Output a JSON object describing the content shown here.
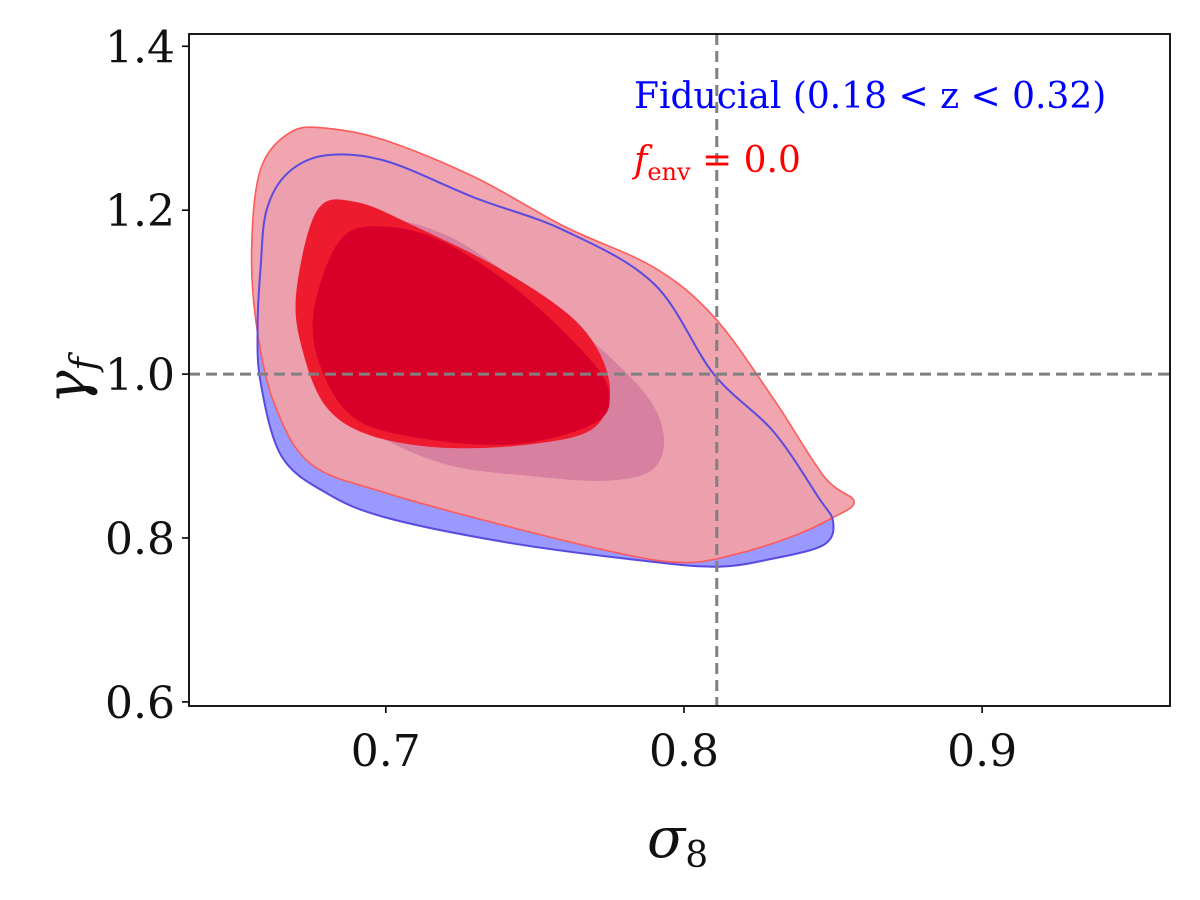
{
  "chart_data": {
    "type": "contour",
    "xlabel": "σ8",
    "ylabel": "γf",
    "xlim": [
      0.634,
      0.963
    ],
    "ylim": [
      0.595,
      1.415
    ],
    "x_ticks": [
      {
        "value": 0.7,
        "label": "0.7"
      },
      {
        "value": 0.8,
        "label": "0.8"
      },
      {
        "value": 0.9,
        "label": "0.9"
      }
    ],
    "y_ticks": [
      {
        "value": 0.6,
        "label": "0.6"
      },
      {
        "value": 0.8,
        "label": "0.8"
      },
      {
        "value": 1.0,
        "label": "1.0"
      },
      {
        "value": 1.2,
        "label": "1.2"
      },
      {
        "value": 1.4,
        "label": "1.4"
      }
    ],
    "fiducial": {
      "x": 0.811,
      "y": 1.0
    },
    "grid": false,
    "legend_position": "top-right",
    "series": [
      {
        "name": "Fiducial (0.18 < z < 0.32)",
        "color": "#0000ff",
        "outer_fill": "#9999ff",
        "inner_fill": "#d880a0",
        "contour_outer_95": [
          [
            0.658,
            1.13
          ],
          [
            0.66,
            1.2
          ],
          [
            0.667,
            1.245
          ],
          [
            0.68,
            1.267
          ],
          [
            0.7,
            1.26
          ],
          [
            0.73,
            1.215
          ],
          [
            0.76,
            1.175
          ],
          [
            0.79,
            1.11
          ],
          [
            0.81,
            1.0
          ],
          [
            0.83,
            0.93
          ],
          [
            0.845,
            0.85
          ],
          [
            0.85,
            0.82
          ],
          [
            0.847,
            0.792
          ],
          [
            0.83,
            0.775
          ],
          [
            0.81,
            0.765
          ],
          [
            0.78,
            0.775
          ],
          [
            0.74,
            0.795
          ],
          [
            0.7,
            0.825
          ],
          [
            0.68,
            0.855
          ],
          [
            0.665,
            0.9
          ],
          [
            0.658,
            0.99
          ],
          [
            0.657,
            1.06
          ]
        ],
        "contour_inner_68": [
          [
            0.675,
            1.1
          ],
          [
            0.685,
            1.18
          ],
          [
            0.7,
            1.19
          ],
          [
            0.72,
            1.17
          ],
          [
            0.74,
            1.125
          ],
          [
            0.76,
            1.07
          ],
          [
            0.785,
            0.985
          ],
          [
            0.793,
            0.93
          ],
          [
            0.79,
            0.885
          ],
          [
            0.775,
            0.87
          ],
          [
            0.75,
            0.875
          ],
          [
            0.72,
            0.89
          ],
          [
            0.695,
            0.93
          ],
          [
            0.68,
            0.98
          ],
          [
            0.675,
            1.03
          ]
        ]
      },
      {
        "name": "fenv = 0.0",
        "color": "#ff0000",
        "outer_fill": "#f0a0aa",
        "inner_fill": "#d80028",
        "contour_outer_95": [
          [
            0.655,
            1.15
          ],
          [
            0.658,
            1.25
          ],
          [
            0.668,
            1.295
          ],
          [
            0.68,
            1.3
          ],
          [
            0.7,
            1.285
          ],
          [
            0.73,
            1.24
          ],
          [
            0.76,
            1.18
          ],
          [
            0.79,
            1.13
          ],
          [
            0.81,
            1.07
          ],
          [
            0.83,
            0.97
          ],
          [
            0.847,
            0.875
          ],
          [
            0.857,
            0.845
          ],
          [
            0.85,
            0.825
          ],
          [
            0.835,
            0.8
          ],
          [
            0.815,
            0.778
          ],
          [
            0.8,
            0.77
          ],
          [
            0.78,
            0.78
          ],
          [
            0.74,
            0.815
          ],
          [
            0.7,
            0.855
          ],
          [
            0.675,
            0.89
          ],
          [
            0.663,
            0.96
          ],
          [
            0.657,
            1.05
          ]
        ],
        "contour_inner_68": [
          [
            0.67,
            1.1
          ],
          [
            0.677,
            1.2
          ],
          [
            0.69,
            1.21
          ],
          [
            0.71,
            1.18
          ],
          [
            0.74,
            1.125
          ],
          [
            0.765,
            1.06
          ],
          [
            0.775,
            0.99
          ],
          [
            0.77,
            0.935
          ],
          [
            0.75,
            0.915
          ],
          [
            0.72,
            0.91
          ],
          [
            0.695,
            0.925
          ],
          [
            0.68,
            0.96
          ],
          [
            0.672,
            1.03
          ]
        ],
        "contour_core": [
          [
            0.676,
            1.08
          ],
          [
            0.685,
            1.165
          ],
          [
            0.7,
            1.18
          ],
          [
            0.72,
            1.16
          ],
          [
            0.745,
            1.1
          ],
          [
            0.768,
            1.02
          ],
          [
            0.775,
            0.975
          ],
          [
            0.77,
            0.94
          ],
          [
            0.745,
            0.915
          ],
          [
            0.715,
            0.92
          ],
          [
            0.69,
            0.945
          ],
          [
            0.678,
            1.01
          ]
        ]
      }
    ]
  },
  "legend": {
    "fiducial_label": "Fiducial (0.18 < z < 0.32)",
    "fenv_label_main": "f",
    "fenv_label_sub": "env",
    "fenv_label_value": " = 0.0"
  }
}
